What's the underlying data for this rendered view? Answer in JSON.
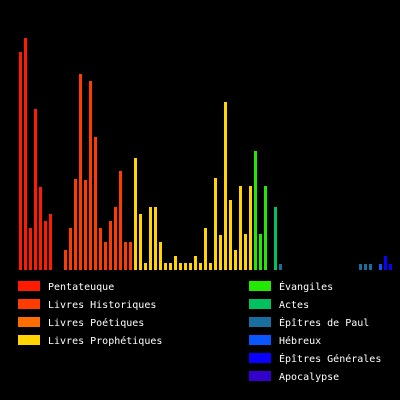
{
  "chart_data": {
    "type": "bar",
    "title": "",
    "xlabel": "",
    "ylabel": "",
    "ylim": [
      0,
      260
    ],
    "grid": false,
    "legend_position": "bottom, two columns",
    "groups": [
      {
        "name": "Pentateuque",
        "color": "#ff1a00",
        "values": [
          218,
          232,
          42,
          161,
          83,
          49,
          56
        ]
      },
      {
        "name": "Livres Historiques",
        "color": "#ff3c00",
        "values": [
          20,
          42,
          91,
          196,
          90,
          189,
          133,
          42,
          28,
          49,
          63,
          99,
          28,
          28
        ]
      },
      {
        "name": "Livres Poétiques",
        "color": "#ff6d00",
        "values": [],
        "note": "bars merge visually with neighbours"
      },
      {
        "name": "Livres Prophétiques",
        "color": "#ffd400",
        "values": [
          112,
          56,
          7,
          63,
          63,
          28,
          7,
          7,
          14,
          7,
          7,
          7,
          14,
          7,
          42,
          7,
          92,
          35,
          168,
          70,
          20,
          84,
          36,
          84
        ]
      },
      {
        "name": "Évangiles",
        "color": "#23e800",
        "values": [
          119,
          36,
          84
        ]
      },
      {
        "name": "Actes",
        "color": "#00c060",
        "values": [
          63
        ]
      },
      {
        "name": "Épîtres de Paul",
        "color": "#1a6e9e",
        "values": [
          6,
          0,
          0,
          0,
          0,
          0,
          0,
          0,
          0,
          0,
          0,
          0,
          0,
          0,
          0,
          0,
          6,
          6,
          6
        ]
      },
      {
        "name": "Hébreux",
        "color": "#0a57ff",
        "values": [
          6
        ]
      },
      {
        "name": "Épîtres Générales",
        "color": "#0a00ff",
        "values": [
          14,
          6
        ]
      },
      {
        "name": "Apocalypse",
        "color": "#3300cc",
        "values": [
          14
        ]
      }
    ]
  },
  "legend": {
    "left": [
      {
        "label": "Pentateuque",
        "color": "#ff1a00"
      },
      {
        "label": "Livres Historiques",
        "color": "#ff3c00"
      },
      {
        "label": "Livres Poétiques",
        "color": "#ff6d00"
      },
      {
        "label": "Livres Prophétiques",
        "color": "#ffd400"
      }
    ],
    "right": [
      {
        "label": "Évangiles",
        "color": "#23e800"
      },
      {
        "label": "Actes",
        "color": "#00c060"
      },
      {
        "label": "Épîtres de Paul",
        "color": "#1a6e9e"
      },
      {
        "label": "Hébreux",
        "color": "#0a57ff"
      },
      {
        "label": "Épîtres Générales",
        "color": "#0a00ff"
      },
      {
        "label": "Apocalypse",
        "color": "#3300cc"
      }
    ]
  }
}
